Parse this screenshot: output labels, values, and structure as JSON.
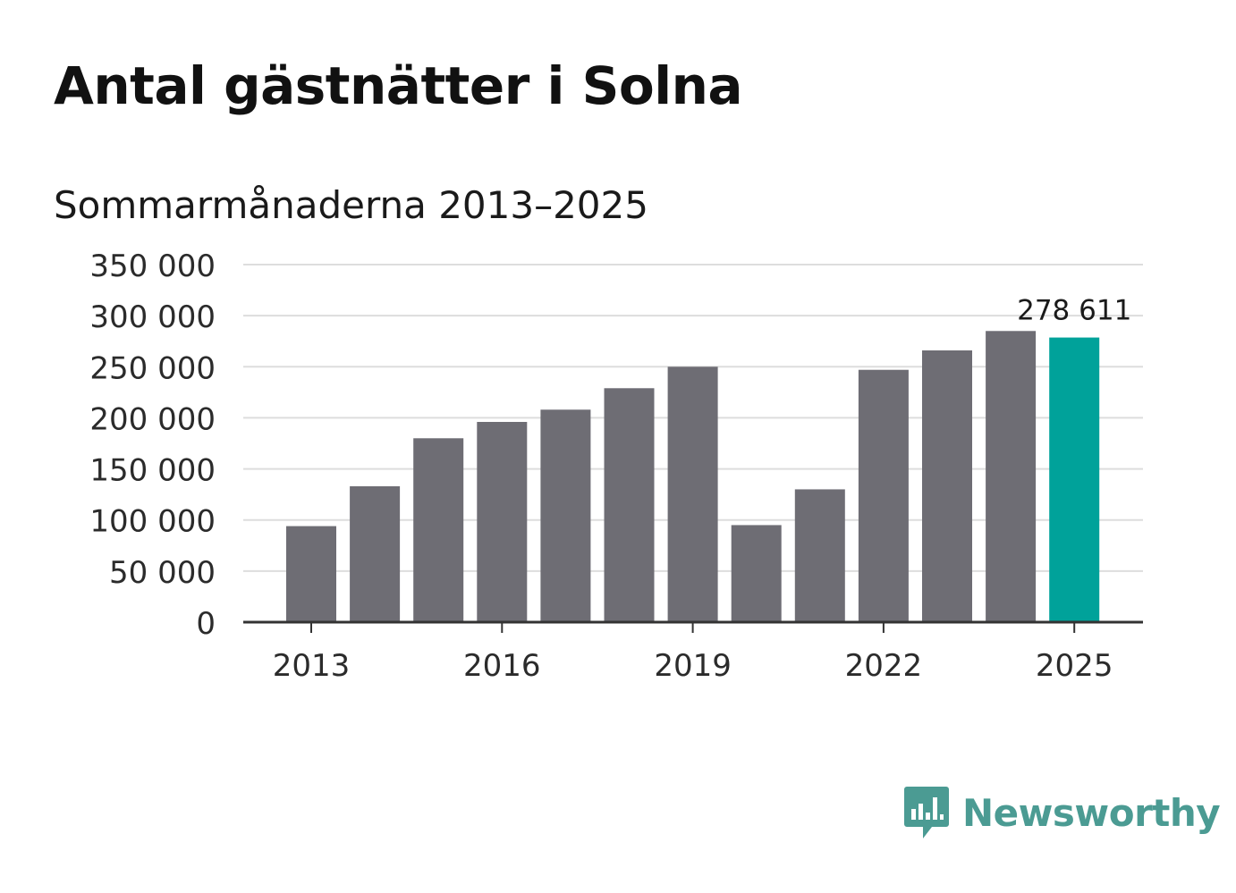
{
  "title": "Antal gästnätter i Solna",
  "subtitle": "Sommarmånaderna 2013–2025",
  "brand": {
    "name": "Newsworthy",
    "color": "#4b9b93",
    "icon": "bar-chart-speech-bubble-icon"
  },
  "colors": {
    "bar": "#6e6d74",
    "highlight": "#00a29a",
    "grid": "#dddddd",
    "axis": "#333333"
  },
  "chart_data": {
    "type": "bar",
    "title": "Antal gästnätter i Solna",
    "subtitle": "Sommarmånaderna 2013–2025",
    "xlabel": "",
    "ylabel": "",
    "categories": [
      "2013",
      "2014",
      "2015",
      "2016",
      "2017",
      "2018",
      "2019",
      "2020",
      "2021",
      "2022",
      "2023",
      "2024",
      "2025"
    ],
    "values": [
      94000,
      133000,
      180000,
      196000,
      208000,
      229000,
      250000,
      95000,
      130000,
      247000,
      266000,
      285000,
      278611
    ],
    "highlight_index": 12,
    "x_tick_labels": [
      "2013",
      "2016",
      "2019",
      "2022",
      "2025"
    ],
    "y_ticks": [
      0,
      50000,
      100000,
      150000,
      200000,
      250000,
      300000,
      350000
    ],
    "y_tick_labels": [
      "0",
      "50 000",
      "100 000",
      "150 000",
      "200 000",
      "250 000",
      "300 000",
      "350 000"
    ],
    "ylim": [
      0,
      350000
    ],
    "grid": true,
    "legend": "none",
    "annotations": [
      {
        "category": "2025",
        "text": "278 611"
      }
    ]
  }
}
